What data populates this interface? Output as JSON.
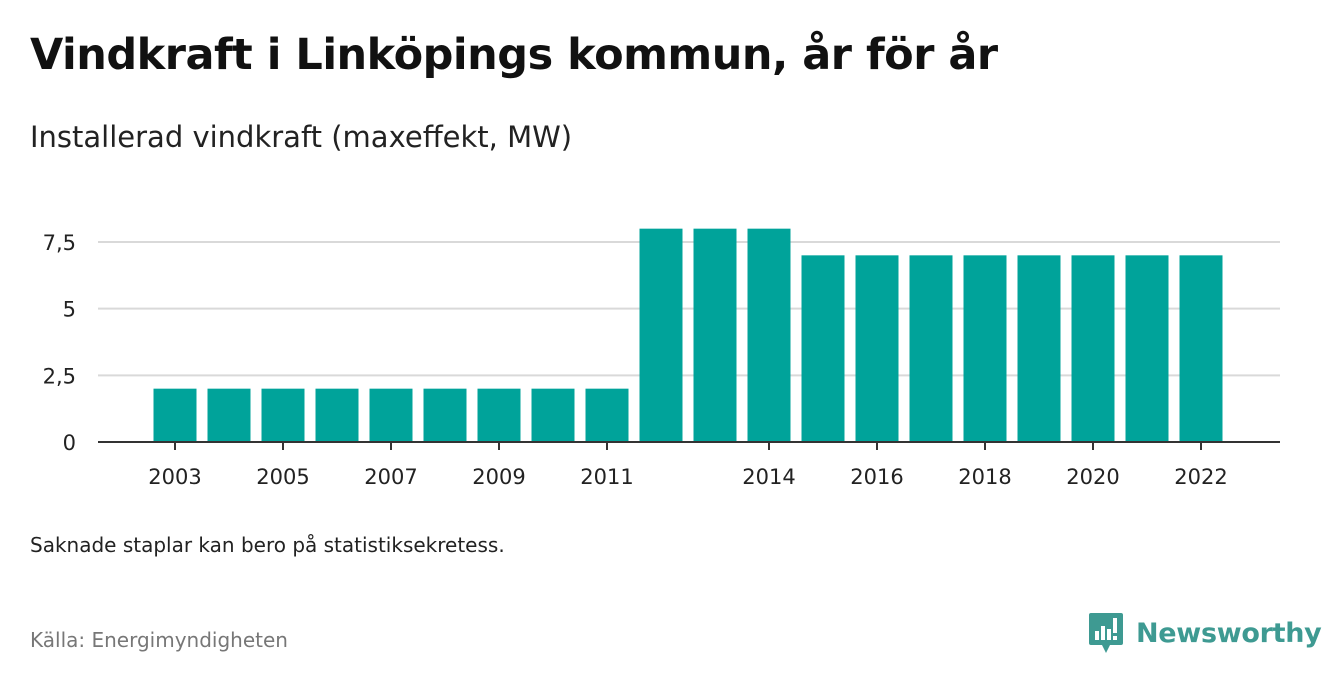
{
  "header": {
    "title": "Vindkraft i Linköpings kommun, år för år",
    "subtitle": "Installerad vindkraft (maxeffekt, MW)"
  },
  "footer": {
    "note": "Saknade staplar kan bero på statistiksekretess.",
    "source": "Källa: Energimyndigheten",
    "brand": "Newsworthy",
    "brand_icon": "newsworthy-logo-icon"
  },
  "colors": {
    "bar": "#00a39a",
    "grid": "#d9d9d9",
    "axis": "#333333",
    "brand": "#3e9a92"
  },
  "chart_data": {
    "type": "bar",
    "title": "Vindkraft i Linköpings kommun, år för år",
    "subtitle": "Installerad vindkraft (maxeffekt, MW)",
    "xlabel": "",
    "ylabel": "",
    "categories": [
      "2003",
      "2004",
      "2005",
      "2006",
      "2007",
      "2008",
      "2009",
      "2010",
      "2011",
      "2012",
      "2013",
      "2014",
      "2015",
      "2016",
      "2017",
      "2018",
      "2019",
      "2020",
      "2021",
      "2022"
    ],
    "values": [
      2,
      2,
      2,
      2,
      2,
      2,
      2,
      2,
      2,
      8,
      8,
      8,
      7,
      7,
      7,
      7,
      7,
      7,
      7,
      7
    ],
    "x_tick_labels": [
      "2003",
      "2005",
      "2007",
      "2009",
      "2011",
      "2014",
      "2016",
      "2018",
      "2020",
      "2022"
    ],
    "y_ticks": [
      0,
      2.5,
      5,
      7.5
    ],
    "y_tick_labels": [
      "0",
      "2,5",
      "5",
      "7,5"
    ],
    "ylim": [
      0,
      8.4
    ],
    "grid": true,
    "legend": "none"
  }
}
